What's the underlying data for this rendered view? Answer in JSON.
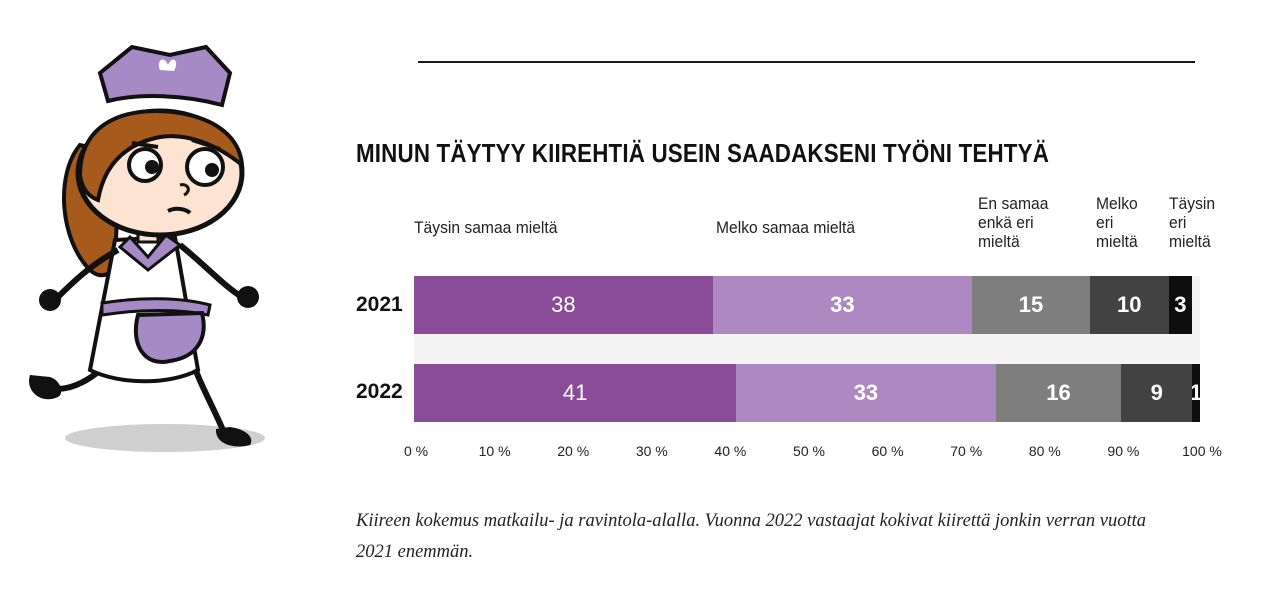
{
  "chart_data": {
    "type": "bar",
    "orientation": "horizontal-stacked-100",
    "title": "MINUN TÄYTYY KIIREHTIÄ USEIN SAADAKSENI TYÖNI TEHTYÄ",
    "categories": [
      "2021",
      "2022"
    ],
    "series": [
      {
        "name": "Täysin samaa mieltä",
        "values": [
          38,
          41
        ],
        "color": "#8a4c98"
      },
      {
        "name": "Melko samaa mieltä",
        "values": [
          33,
          33
        ],
        "color": "#ae88c1"
      },
      {
        "name": "En samaa enkä eri mieltä",
        "values": [
          15,
          16
        ],
        "color": "#7e7e7e"
      },
      {
        "name": "Melko eri mieltä",
        "values": [
          10,
          9
        ],
        "color": "#424242"
      },
      {
        "name": "Täysin eri mieltä",
        "values": [
          3,
          1
        ],
        "color": "#0e0e0e"
      }
    ],
    "xlim": [
      0,
      100
    ],
    "x_ticks": [
      "0 %",
      "10 %",
      "20 %",
      "30 %",
      "40 %",
      "50 %",
      "60 %",
      "70 %",
      "80 %",
      "90 %",
      "100 %"
    ],
    "legend_placement": "top"
  },
  "legend": [
    {
      "lines": [
        "Täysin samaa mieltä"
      ]
    },
    {
      "lines": [
        "Melko samaa mieltä"
      ]
    },
    {
      "lines": [
        "En samaa",
        "enkä eri",
        "mieltä"
      ]
    },
    {
      "lines": [
        "Melko",
        "eri",
        "mieltä"
      ]
    },
    {
      "lines": [
        "Täysin",
        "eri",
        "mieltä"
      ]
    }
  ],
  "caption": "Kiireen kokemus matkailu- ja ravintola-alalla. Vuonna 2022 vastaajat kokivat kiirettä jonkin verran vuotta 2021 enemmän.",
  "colors": {
    "cap_purple": "#a58ac6",
    "hair": "#a65a1c",
    "skin": "#fde4d2"
  }
}
